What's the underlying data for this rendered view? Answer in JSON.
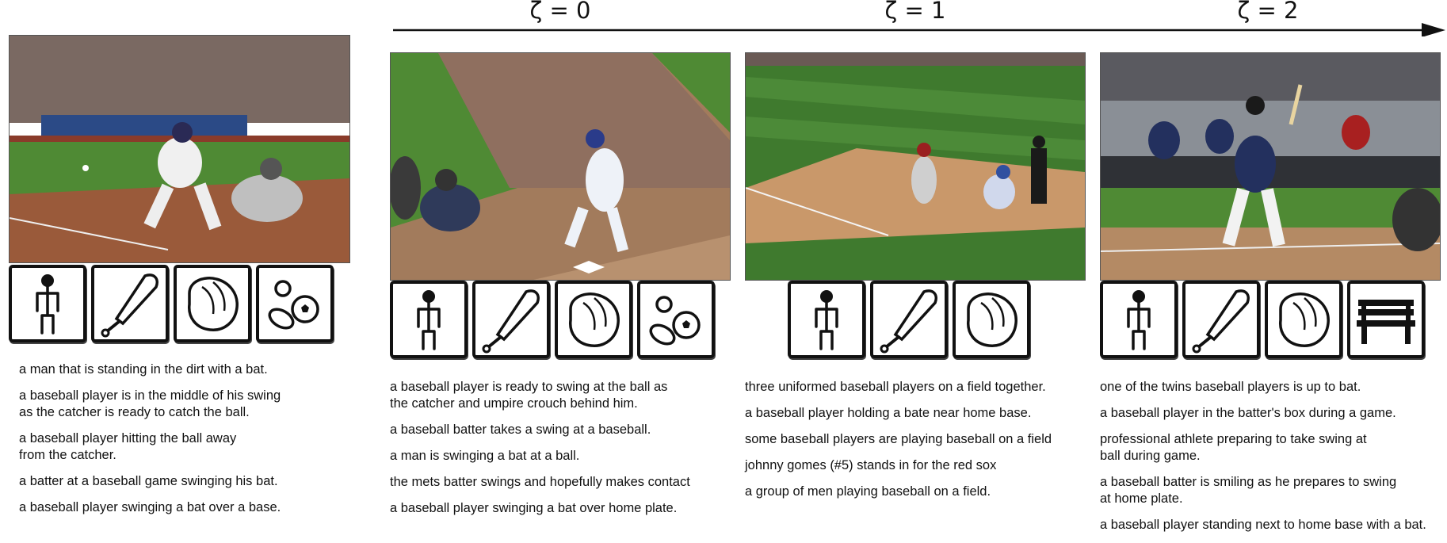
{
  "axis": {
    "labels": [
      "ζ = 0",
      "ζ = 1",
      "ζ = 2"
    ]
  },
  "icons": {
    "person": "person-icon",
    "bat": "baseball-bat-icon",
    "glove": "baseball-glove-icon",
    "balls": "sports-balls-icon",
    "bench": "bench-icon"
  },
  "columns": [
    {
      "icons": [
        "person",
        "bat",
        "glove",
        "balls"
      ],
      "captions": [
        "a man that is standing in the dirt with a bat.",
        "a baseball player is in the middle of his swing\nas the catcher is ready to catch the ball.",
        "a baseball player hitting the ball away\nfrom the catcher.",
        "a batter at a baseball game swinging his bat.",
        "a baseball player swinging a bat over a base."
      ]
    },
    {
      "icons": [
        "person",
        "bat",
        "glove",
        "balls"
      ],
      "captions": [
        "a baseball player is ready to swing at the ball as\nthe catcher and umpire crouch behind him.",
        "a baseball batter takes a swing at a baseball.",
        "a man is swinging a bat at a ball.",
        "the mets batter swings and hopefully makes contact",
        "a baseball player swinging a bat over home plate."
      ]
    },
    {
      "icons": [
        "person",
        "bat",
        "glove"
      ],
      "captions": [
        "three uniformed baseball players on a field together.",
        "a baseball player holding a bate near home base.",
        "some baseball players are playing baseball on a field",
        "johnny gomes (#5) stands in for the red sox",
        "a group of men playing baseball on a field."
      ]
    },
    {
      "icons": [
        "person",
        "bat",
        "glove",
        "bench"
      ],
      "captions": [
        "one of the twins baseball players is up to bat.",
        "a baseball player in the batter's box during a game.",
        "professional athlete preparing to take swing at\nball during game.",
        "a baseball batter is smiling as he prepares to swing\nat home plate.",
        "a baseball player standing next to home base with a bat."
      ]
    }
  ]
}
